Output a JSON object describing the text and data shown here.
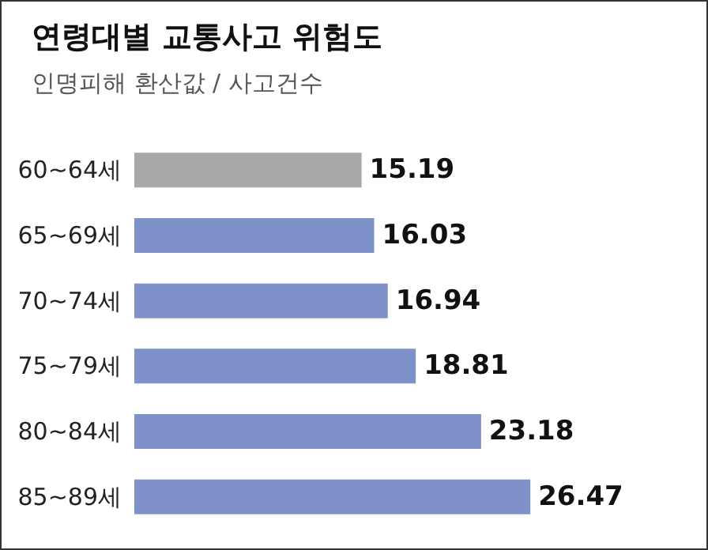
{
  "chart_data": {
    "type": "bar",
    "orientation": "horizontal",
    "title": "연령대별 교통사고 위험도",
    "subtitle": "인명피해 환산값 / 사고건수",
    "categories": [
      "60~64세",
      "65~69세",
      "70~74세",
      "75~79세",
      "80~84세",
      "85~89세"
    ],
    "values": [
      15.19,
      16.03,
      16.94,
      18.81,
      23.18,
      26.47
    ],
    "colors": [
      "#a8a8a8",
      "#7f91c9",
      "#7f91c9",
      "#7f91c9",
      "#7f91c9",
      "#7f91c9"
    ],
    "data_labels": true
  }
}
